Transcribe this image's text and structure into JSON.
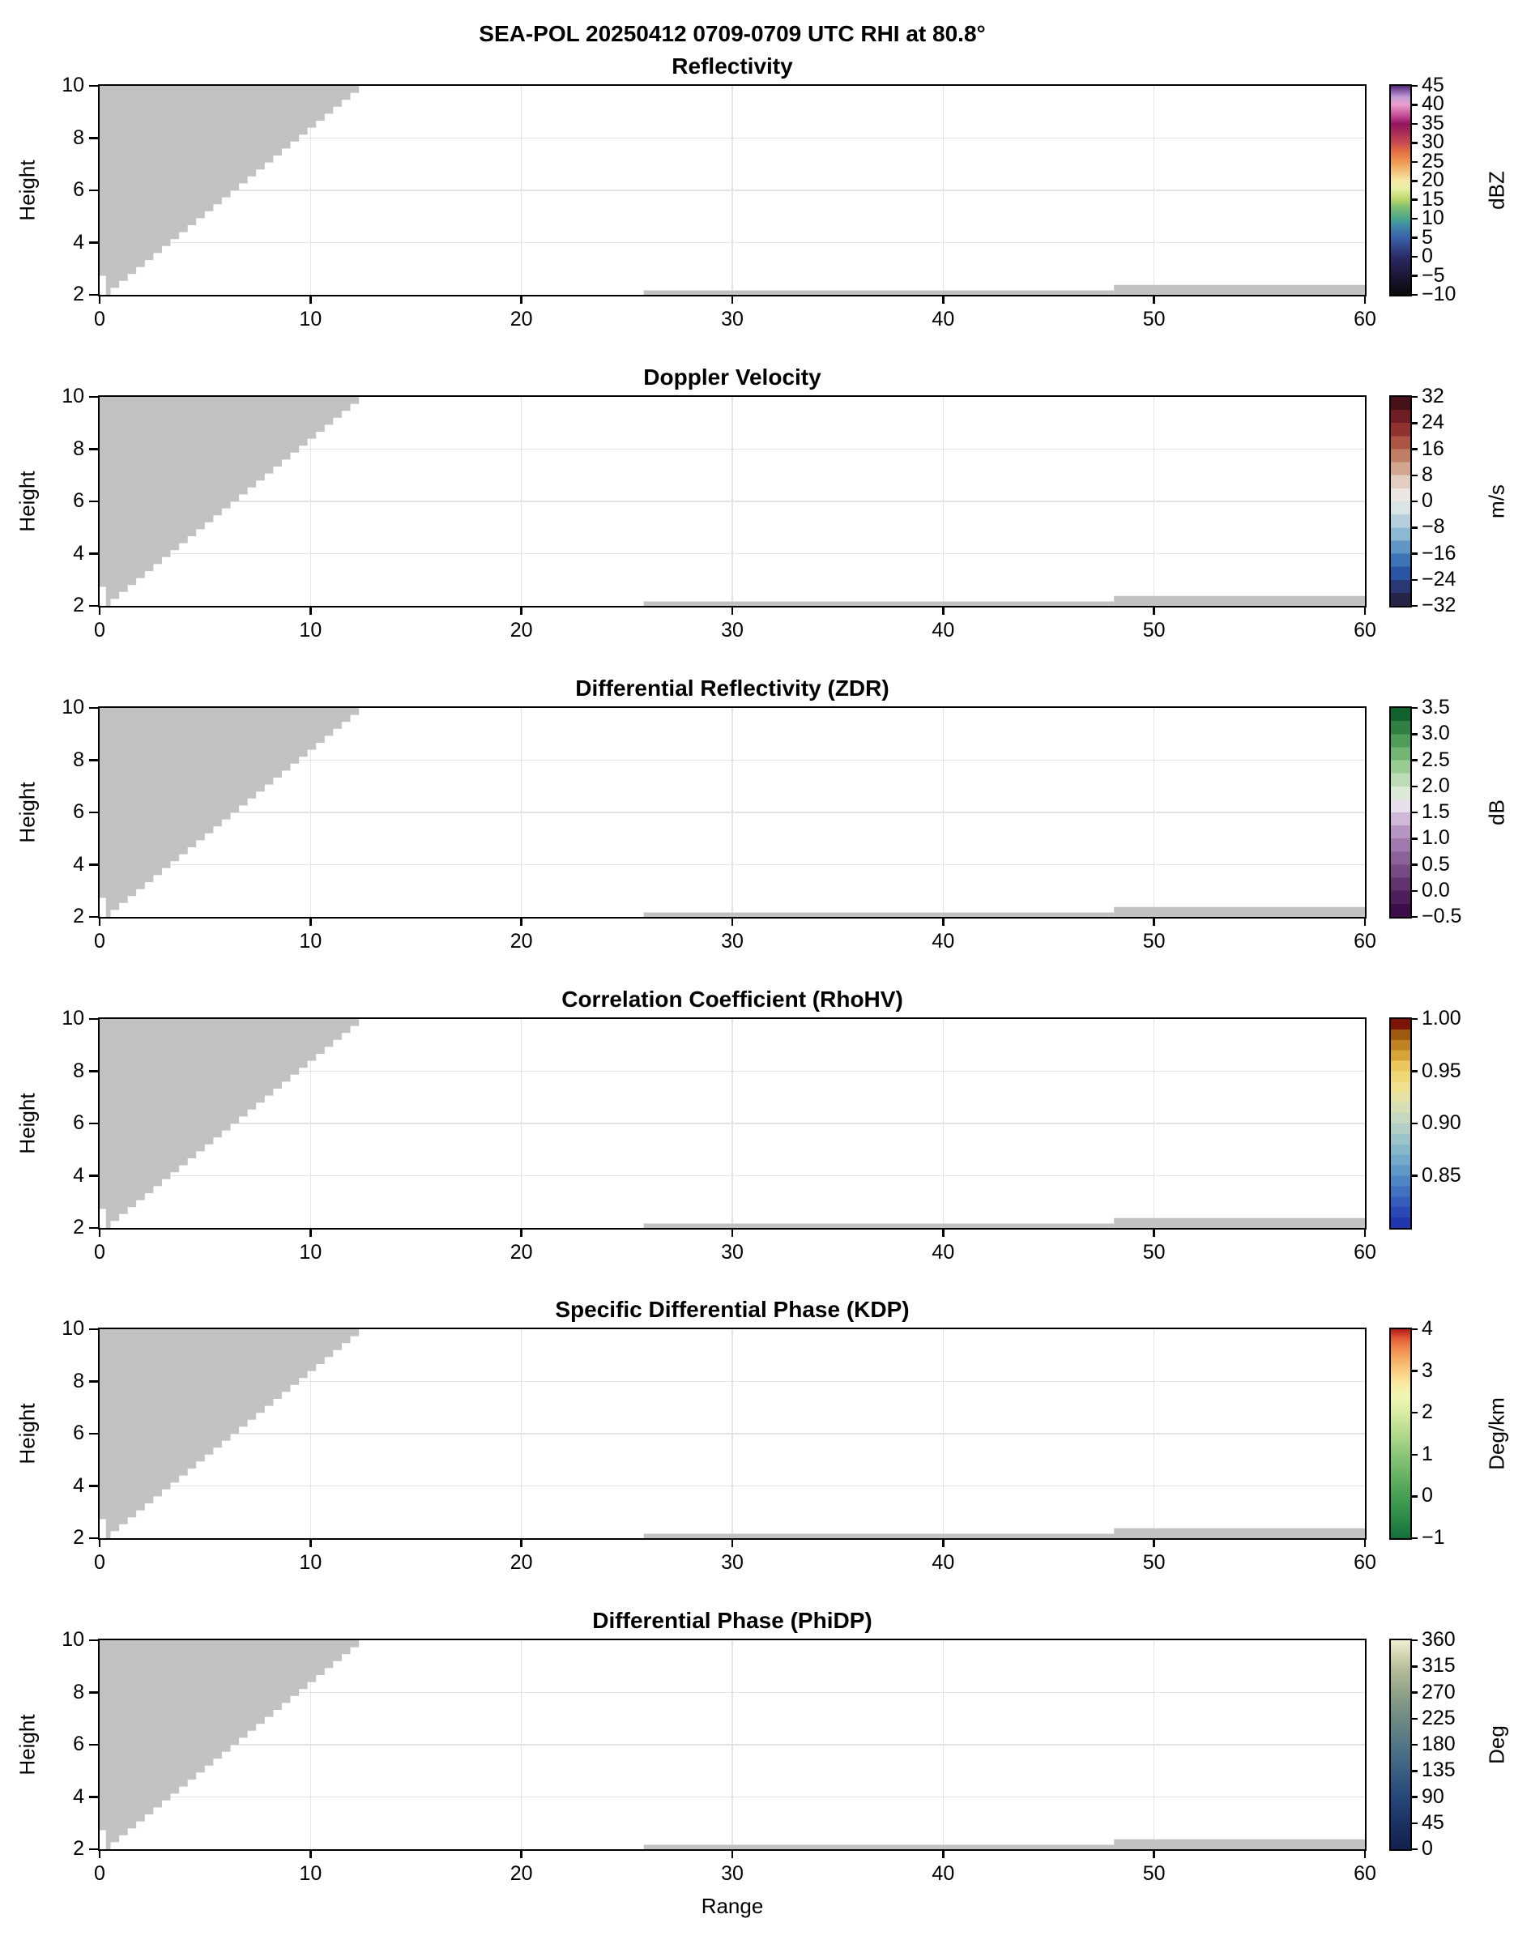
{
  "figure": {
    "main_title": "SEA-POL 20250412 0709-0709 UTC RHI at 80.8°",
    "xlabel": "Range",
    "ylabel": "Height"
  },
  "chart_data": {
    "type": "heatmap",
    "layout": "six vertically stacked RHI cross-section panels, identical axes, colorbar at right of each",
    "xlabel": "Range",
    "ylabel": "Height",
    "xlim": [
      0,
      60
    ],
    "ylim": [
      2,
      10
    ],
    "xticks": [
      0,
      10,
      20,
      30,
      40,
      50,
      60
    ],
    "yticks": [
      2,
      4,
      6,
      8,
      10
    ],
    "x_tick_labels": [
      "0",
      "10",
      "20",
      "30",
      "40",
      "50",
      "60"
    ],
    "y_tick_labels": [
      "2",
      "4",
      "6",
      "8",
      "10"
    ],
    "x_gridlines": [
      10,
      20,
      30,
      40,
      50
    ],
    "y_gridlines": [
      4,
      6,
      8
    ],
    "grid_color": "#e4e4e4",
    "mask_color": "#c2c2c2",
    "masked_regions": {
      "note": "all visible fill is gray no-data mask; no colored echoes present",
      "wedge": {
        "base_points": [
          [
            0,
            2.73
          ],
          [
            0.3,
            2.73
          ],
          [
            0.3,
            2.0
          ],
          [
            0.52,
            2.0
          ]
        ],
        "step_from": [
          0.52,
          2.0
        ],
        "step_to": [
          12.7,
          10.0
        ],
        "steps": 30
      },
      "strips": [
        {
          "x0": 25.8,
          "y0": 2.0,
          "x1": 48.1,
          "y1": 2.17
        },
        {
          "x0": 48.1,
          "y0": 2.0,
          "x1": 60.0,
          "y1": 2.38
        }
      ]
    },
    "panels": [
      {
        "title": "Reflectivity",
        "colorbar": {
          "unit": "dBZ",
          "min": -10,
          "max": 45,
          "ticks": [
            {
              "label": "45",
              "value": 45
            },
            {
              "label": "40",
              "value": 40
            },
            {
              "label": "35",
              "value": 35
            },
            {
              "label": "30",
              "value": 30
            },
            {
              "label": "25",
              "value": 25
            },
            {
              "label": "20",
              "value": 20
            },
            {
              "label": "15",
              "value": 15
            },
            {
              "label": "10",
              "value": 10
            },
            {
              "label": "5",
              "value": 5
            },
            {
              "label": "0",
              "value": 0
            },
            {
              "label": "−5",
              "value": -5
            },
            {
              "label": "−10",
              "value": -10
            }
          ],
          "gradient": {
            "mode": "smooth",
            "stops": [
              [
                0.0,
                "#0a0a0c"
              ],
              [
                0.09,
                "#1c1636"
              ],
              [
                0.18,
                "#2a2a66"
              ],
              [
                0.27,
                "#395fa8"
              ],
              [
                0.33,
                "#3f88a8"
              ],
              [
                0.36,
                "#47a48e"
              ],
              [
                0.42,
                "#7fbf70"
              ],
              [
                0.455,
                "#b9d468"
              ],
              [
                0.51,
                "#e9efa2"
              ],
              [
                0.545,
                "#f6e9a7"
              ],
              [
                0.58,
                "#f5cc86"
              ],
              [
                0.635,
                "#f09a52"
              ],
              [
                0.69,
                "#e26a42"
              ],
              [
                0.727,
                "#c94a52"
              ],
              [
                0.78,
                "#a62a56"
              ],
              [
                0.818,
                "#94135e"
              ],
              [
                0.855,
                "#c04894"
              ],
              [
                0.91,
                "#eb9fca"
              ],
              [
                0.945,
                "#c29ed6"
              ],
              [
                0.975,
                "#8a5caa"
              ],
              [
                1.0,
                "#532d75"
              ]
            ]
          }
        }
      },
      {
        "title": "Doppler Velocity",
        "colorbar": {
          "unit": "m/s",
          "min": -32,
          "max": 32,
          "ticks": [
            {
              "label": "32",
              "value": 32
            },
            {
              "label": "24",
              "value": 24
            },
            {
              "label": "16",
              "value": 16
            },
            {
              "label": "8",
              "value": 8
            },
            {
              "label": "0",
              "value": 0
            },
            {
              "label": "−8",
              "value": -8
            },
            {
              "label": "−16",
              "value": -16
            },
            {
              "label": "−24",
              "value": -24
            },
            {
              "label": "−32",
              "value": -32
            }
          ],
          "gradient": {
            "mode": "bands",
            "colors": [
              "#252447",
              "#293775",
              "#2a55a4",
              "#3c74b6",
              "#6096c6",
              "#8db8d4",
              "#b5d0dc",
              "#d9e4e4",
              "#ece7e3",
              "#e3cdc0",
              "#d2a68f",
              "#c17e66",
              "#ad5544",
              "#92322f",
              "#701c25",
              "#461119"
            ]
          }
        }
      },
      {
        "title": "Differential Reflectivity (ZDR)",
        "colorbar": {
          "unit": "dB",
          "min": -0.5,
          "max": 3.5,
          "ticks": [
            {
              "label": "3.5",
              "value": 3.5
            },
            {
              "label": "3.0",
              "value": 3.0
            },
            {
              "label": "2.5",
              "value": 2.5
            },
            {
              "label": "2.0",
              "value": 2.0
            },
            {
              "label": "1.5",
              "value": 1.5
            },
            {
              "label": "1.0",
              "value": 1.0
            },
            {
              "label": "0.5",
              "value": 0.5
            },
            {
              "label": "0.0",
              "value": 0.0
            },
            {
              "label": "−0.5",
              "value": -0.5
            }
          ],
          "gradient": {
            "mode": "bands",
            "colors": [
              "#3c0d49",
              "#4f1f5c",
              "#633370",
              "#774a85",
              "#8b6199",
              "#a07aae",
              "#b695c3",
              "#d0b8da",
              "#e8e0ea",
              "#dcead8",
              "#bcdcb5",
              "#99cc93",
              "#73b573",
              "#4f9d58",
              "#2e8143",
              "#11632e"
            ]
          }
        }
      },
      {
        "title": "Correlation Coefficient (RhoHV)",
        "colorbar": {
          "unit": "",
          "min": 0.8,
          "max": 1.0,
          "ticks": [
            {
              "label": "1.00",
              "value": 1.0
            },
            {
              "label": "0.95",
              "value": 0.95
            },
            {
              "label": "0.90",
              "value": 0.9
            },
            {
              "label": "0.85",
              "value": 0.85
            }
          ],
          "gradient": {
            "mode": "bands",
            "colors": [
              "#2135ae",
              "#2a49b5",
              "#345dbc",
              "#4172c1",
              "#4f86c5",
              "#6098c8",
              "#73a9ca",
              "#88b8cb",
              "#9dc4ca",
              "#b2cfc7",
              "#c6d8c0",
              "#d8deb4",
              "#e6e1a4",
              "#efe08f",
              "#f1d877",
              "#ecc75e",
              "#d7a438",
              "#c08324",
              "#a05a10",
              "#7c1505"
            ]
          }
        }
      },
      {
        "title": "Specific Differential Phase (KDP)",
        "colorbar": {
          "unit": "Deg/km",
          "min": -1,
          "max": 4,
          "ticks": [
            {
              "label": "4",
              "value": 4
            },
            {
              "label": "3",
              "value": 3
            },
            {
              "label": "2",
              "value": 2
            },
            {
              "label": "1",
              "value": 1
            },
            {
              "label": "0",
              "value": 0
            },
            {
              "label": "−1",
              "value": -1
            }
          ],
          "gradient": {
            "mode": "smooth",
            "stops": [
              [
                0.0,
                "#14703a"
              ],
              [
                0.1,
                "#2c8a48"
              ],
              [
                0.2,
                "#469f53"
              ],
              [
                0.3,
                "#67b465"
              ],
              [
                0.4,
                "#8cc678"
              ],
              [
                0.5,
                "#b4da8c"
              ],
              [
                0.6,
                "#d9eca2"
              ],
              [
                0.68,
                "#f2f6b2"
              ],
              [
                0.74,
                "#f9e9a2"
              ],
              [
                0.8,
                "#f9cd82"
              ],
              [
                0.86,
                "#f5ab62"
              ],
              [
                0.92,
                "#ee7f48"
              ],
              [
                0.96,
                "#e15536"
              ],
              [
                1.0,
                "#b01a18"
              ]
            ]
          }
        }
      },
      {
        "title": "Differential Phase (PhiDP)",
        "colorbar": {
          "unit": "Deg",
          "min": 0,
          "max": 360,
          "ticks": [
            {
              "label": "360",
              "value": 360
            },
            {
              "label": "315",
              "value": 315
            },
            {
              "label": "270",
              "value": 270
            },
            {
              "label": "225",
              "value": 225
            },
            {
              "label": "180",
              "value": 180
            },
            {
              "label": "135",
              "value": 135
            },
            {
              "label": "90",
              "value": 90
            },
            {
              "label": "45",
              "value": 45
            },
            {
              "label": "0",
              "value": 0
            }
          ],
          "gradient": {
            "mode": "smooth",
            "stops": [
              [
                0.0,
                "#12204d"
              ],
              [
                0.125,
                "#1b3263"
              ],
              [
                0.25,
                "#26477a"
              ],
              [
                0.375,
                "#3a5f82"
              ],
              [
                0.5,
                "#527686"
              ],
              [
                0.625,
                "#6e8a82"
              ],
              [
                0.75,
                "#90a287"
              ],
              [
                0.875,
                "#bcc09c"
              ],
              [
                1.0,
                "#f0f0d0"
              ]
            ]
          }
        }
      }
    ]
  }
}
